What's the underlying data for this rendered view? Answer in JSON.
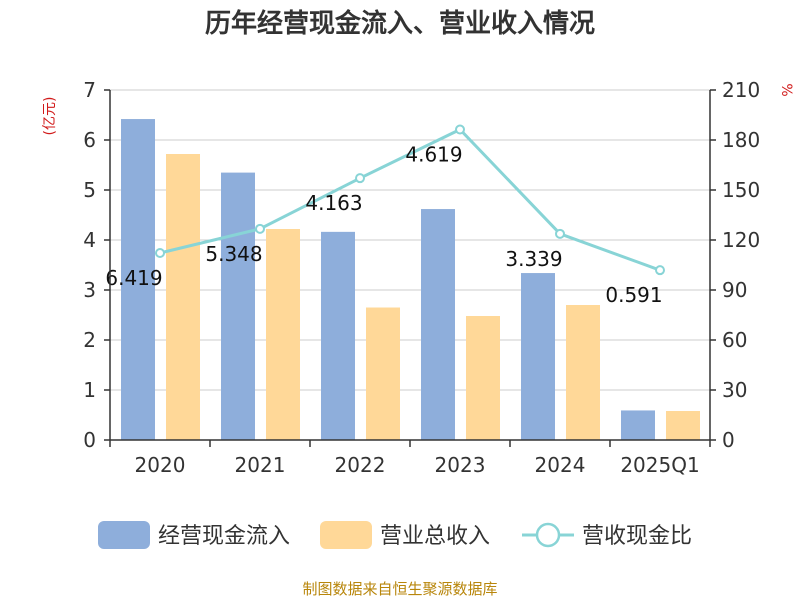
{
  "colors": {
    "cash_inflow": "#8eaedb",
    "revenue": "#ffd898",
    "ratio": "#88d4d6",
    "unit": "#d11a1a",
    "source": "#b8860b"
  },
  "chart_data": {
    "type": "bar",
    "title": "历年经营现金流入、营业收入情况",
    "categories": [
      "2020",
      "2021",
      "2022",
      "2023",
      "2024",
      "2025Q1"
    ],
    "series": [
      {
        "name": "经营现金流入",
        "type": "bar",
        "axis": "left",
        "values": [
          6.419,
          5.348,
          4.163,
          4.619,
          3.339,
          0.591
        ],
        "labels": [
          "6.419",
          "5.348",
          "4.163",
          "4.619",
          "3.339",
          "0.591"
        ]
      },
      {
        "name": "营业总收入",
        "type": "bar",
        "axis": "left",
        "values": [
          5.72,
          4.22,
          2.65,
          2.48,
          2.7,
          0.58
        ]
      },
      {
        "name": "营收现金比",
        "type": "line",
        "axis": "right",
        "values": [
          112.2,
          126.7,
          157.1,
          186.3,
          123.7,
          101.9
        ]
      }
    ],
    "y_left": {
      "unit": "(亿元)",
      "ylim": [
        0,
        7
      ],
      "ticks": [
        "0",
        "1",
        "2",
        "3",
        "4",
        "5",
        "6",
        "7"
      ]
    },
    "y_right": {
      "unit": "%",
      "ylim": [
        0,
        210
      ],
      "ticks": [
        "0",
        "30",
        "60",
        "90",
        "120",
        "150",
        "180",
        "210"
      ]
    },
    "grid": true,
    "legend_position": "bottom",
    "source": "制图数据来自恒生聚源数据库"
  }
}
